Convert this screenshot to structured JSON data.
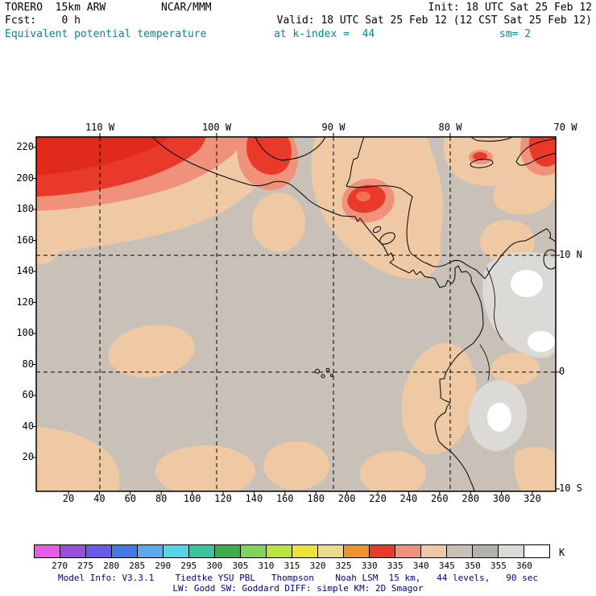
{
  "header": {
    "model_id": "TORERO  15km ARW",
    "center": "NCAR/MMM",
    "init": "Init: 18 UTC Sat 25 Feb 12",
    "fcst": "Fcst:    0 h",
    "valid": "Valid: 18 UTC Sat 25 Feb 12 (12 CST Sat 25 Feb 12)",
    "field_title": "Equivalent potential temperature",
    "field_level": "at k-index =  44",
    "smoothing": "sm= 2",
    "accent_color": "#008B8B"
  },
  "map": {
    "top_labels": [
      "110 W",
      "100 W",
      "90 W",
      "80 W",
      "70 W"
    ],
    "left_labels": [
      "220",
      "200",
      "180",
      "160",
      "140",
      "120",
      "100",
      "80",
      "60",
      "40",
      "20"
    ],
    "bottom_labels": [
      "20",
      "40",
      "60",
      "80",
      "100",
      "120",
      "140",
      "160",
      "180",
      "200",
      "220",
      "240",
      "260",
      "280",
      "300",
      "320"
    ],
    "right_labels": [
      "10 N",
      "0",
      "10 S"
    ]
  },
  "colorbar": {
    "unit": "K",
    "ticks": [
      "270",
      "275",
      "280",
      "285",
      "290",
      "295",
      "300",
      "305",
      "310",
      "315",
      "320",
      "325",
      "330",
      "335",
      "340",
      "345",
      "350",
      "355",
      "360"
    ],
    "colors": [
      "#E65CE6",
      "#9A4FDC",
      "#6A5AEA",
      "#4478E2",
      "#5FA8EE",
      "#55D4E8",
      "#3CC49C",
      "#3DAE4E",
      "#7FD45F",
      "#BAE442",
      "#EDE13A",
      "#EDDC8C",
      "#F0922E",
      "#E8392B",
      "#F0917B",
      "#EFC9A4",
      "#C9C1B8",
      "#B4B1AD",
      "#DCDAD7",
      "#FFFFFF"
    ]
  },
  "field_colors": {
    "base": "#C9C1B8",
    "peach": "#EFC9A4",
    "salmon": "#F0917B",
    "red": "#E8392B",
    "red_dark": "#E02A1C",
    "core": "#F4704E",
    "light_gray": "#DCDAD7",
    "white": "#FFFFFF"
  },
  "footer": {
    "line1": "Model Info: V3.3.1    Tiedtke YSU PBL   Thompson    Noah LSM  15 km,   44 levels,   90 sec",
    "line2": "LW: Godd SW: Goddard DIFF: simple KM: 2D Smagor",
    "color": "#00008B"
  }
}
